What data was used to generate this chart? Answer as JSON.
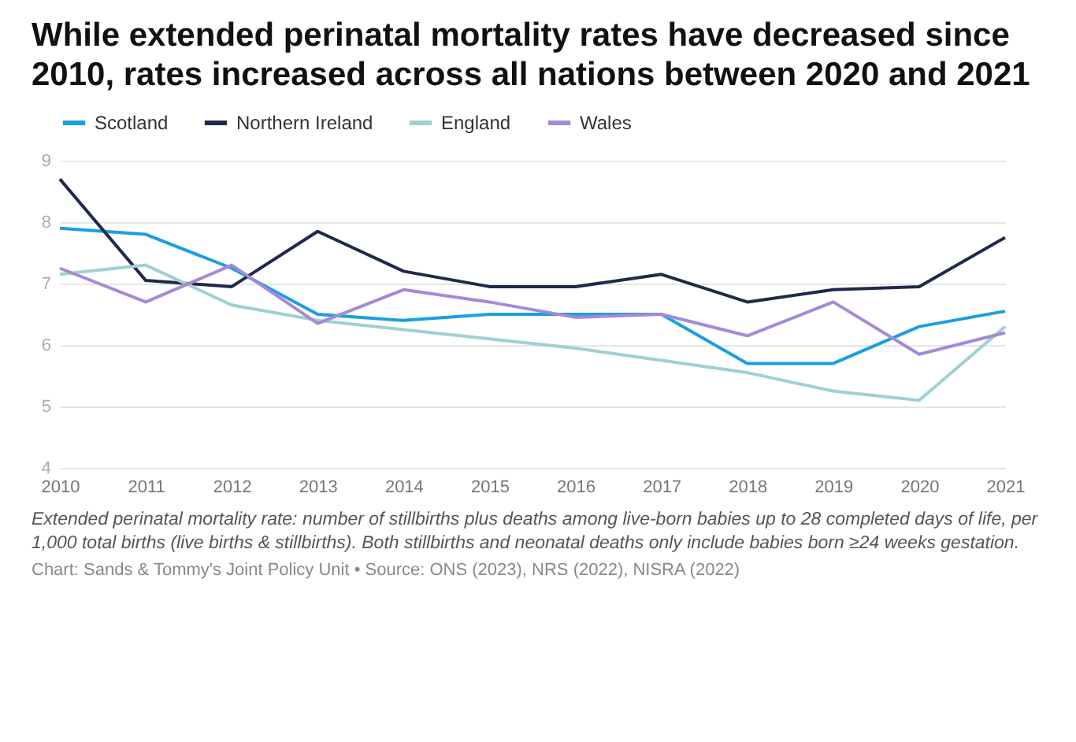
{
  "chart_data": {
    "type": "line",
    "title": "While extended perinatal mortality rates have decreased since 2010, rates increased across all nations between 2020 and 2021",
    "categories": [
      "2010",
      "2011",
      "2012",
      "2013",
      "2014",
      "2015",
      "2016",
      "2017",
      "2018",
      "2019",
      "2020",
      "2021"
    ],
    "series": [
      {
        "name": "Scotland",
        "color": "#1a9fe0",
        "values": [
          7.9,
          7.8,
          7.25,
          6.5,
          6.4,
          6.5,
          6.5,
          6.5,
          5.7,
          5.7,
          6.3,
          6.55
        ]
      },
      {
        "name": "Northern Ireland",
        "color": "#1f2a4a",
        "values": [
          8.7,
          7.05,
          6.95,
          7.85,
          7.2,
          6.95,
          6.95,
          7.15,
          6.7,
          6.9,
          6.95,
          7.75
        ]
      },
      {
        "name": "England",
        "color": "#9fd1d0",
        "values": [
          7.15,
          7.3,
          6.65,
          6.4,
          6.25,
          6.1,
          5.95,
          5.75,
          5.55,
          5.25,
          5.1,
          6.3
        ]
      },
      {
        "name": "Wales",
        "color": "#a48ad6",
        "values": [
          7.25,
          6.7,
          7.3,
          6.35,
          6.9,
          6.7,
          6.45,
          6.5,
          6.15,
          6.7,
          5.85,
          6.2
        ]
      }
    ],
    "ylim": [
      4,
      9
    ],
    "yticks": [
      4,
      5,
      6,
      7,
      8,
      9
    ],
    "grid": "y",
    "legend": "top left",
    "marker": "none",
    "line_style": "solid",
    "annotations": [
      "Extended perinatal mortality rate: number of stillbirths plus deaths among live-born babies up to 28 completed days of life, per 1,000 total births (live births & stillbirths). Both stillbirths and neonatal deaths only include babies born ≥24 weeks gestation.",
      "Chart: Sands & Tommy's Joint Policy Unit • Source: ONS (2023), NRS (2022), NISRA (2022)"
    ]
  }
}
